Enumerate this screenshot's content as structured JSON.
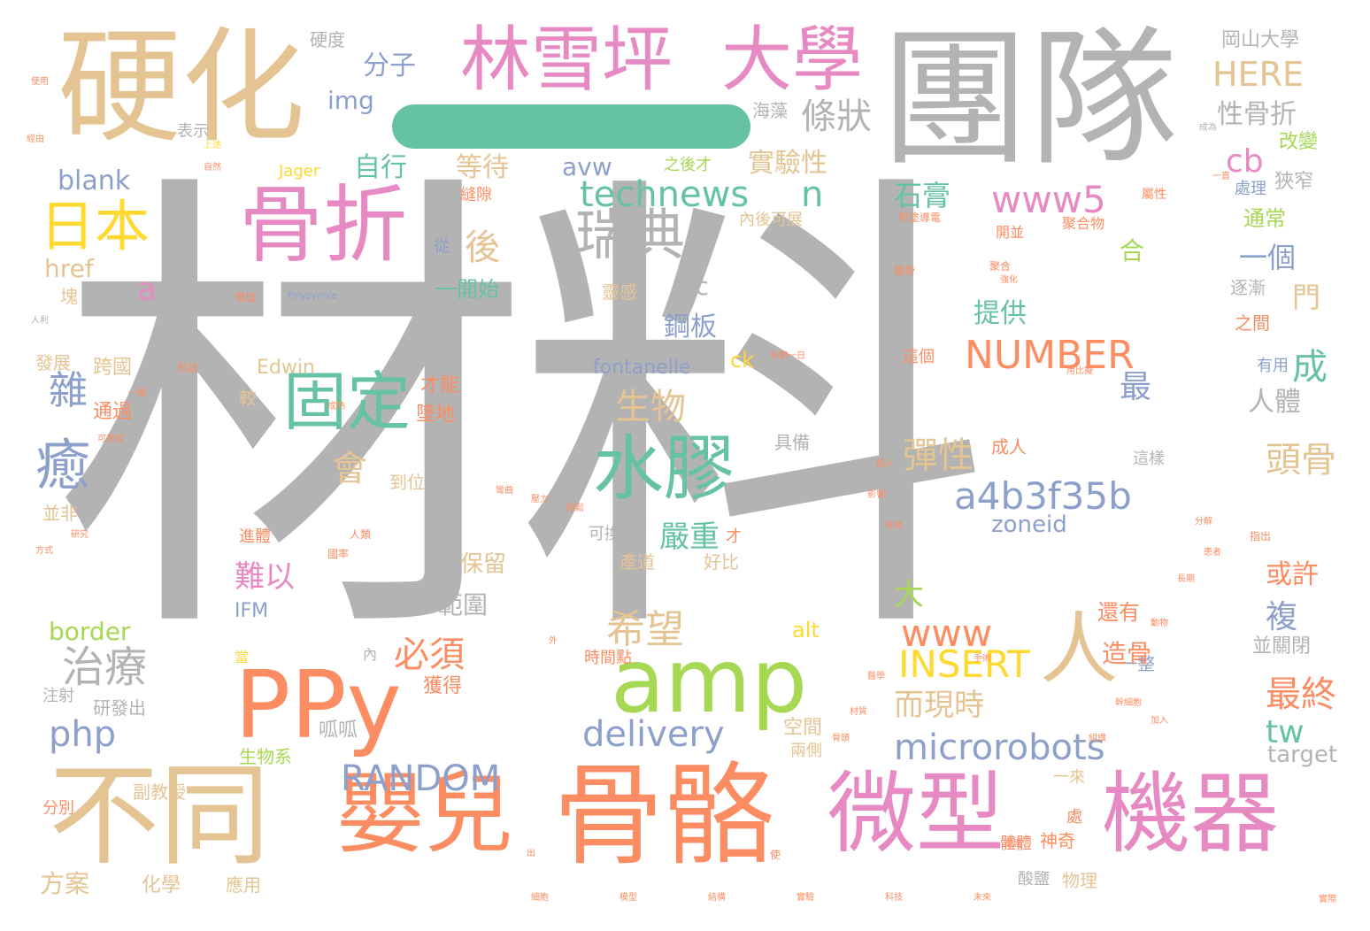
{
  "palette": {
    "gray": "#b3b3b3",
    "tan": "#e5c494",
    "pink": "#e78ac3",
    "orange": "#fc8d62",
    "green": "#66c2a5",
    "lime": "#a6d854",
    "blue": "#8da0cb",
    "yellow": "#ffd92f"
  },
  "words": [
    "材料",
    "團隊",
    "硬化",
    "骨折",
    "骨骼",
    "不同",
    "林雪坪",
    "大學",
    "嬰兒",
    "微型",
    "機器",
    "PPy",
    "amp",
    "水膠",
    "固定",
    "日本",
    "瑞典",
    "人",
    "癒",
    "治療",
    "分子",
    "條狀",
    "technews",
    "n",
    "a4b3f35b",
    "www5",
    "microrobots",
    "delivery",
    "RANDOM",
    "NUMBER",
    "INSERT",
    "www",
    "php",
    "後",
    "希望",
    "生物",
    "彈性",
    "必須",
    "嚴重",
    "會",
    "難以",
    "最終",
    "頭骨",
    "HERE",
    "img",
    "自行",
    "等待",
    "avw",
    "實驗性",
    "cb",
    "性骨折",
    "岡山大學",
    "硬度",
    "海藻",
    "改變",
    "blank",
    "石膏",
    "一個",
    "通常",
    "href",
    "a",
    "src",
    "一開始",
    "鋼板",
    "提供",
    "門",
    "成",
    "最",
    "雜",
    "人體",
    "ck",
    "fontanelle",
    "Edwin",
    "跨國",
    "較",
    "生物系",
    "呱呱",
    "研發出",
    "副教授",
    "方案",
    "化學",
    "應用",
    "分別",
    "注射",
    "tw",
    "target",
    "一整",
    "造骨",
    "border",
    "IFM",
    "alt",
    "大",
    "保留",
    "範圍",
    "zoneid",
    "或許",
    "複",
    "還有",
    "並關閉",
    "而現時",
    "時間點",
    "好比",
    "產道",
    "可換",
    "空間",
    "兩側",
    "獲得",
    "到位",
    "才能",
    "墜地",
    "具備",
    "成人",
    "這樣",
    "並非",
    "通過",
    "發展",
    "進體",
    "表示",
    "之後才",
    "縫隙",
    "從",
    "合",
    "靈感",
    "內後可展",
    "狹窄",
    "處理",
    "逐漸",
    "之間",
    "這個",
    "有用",
    "物理",
    "酸鹽",
    "神奇",
    "一來",
    "處",
    "體體",
    "Jager",
    "塊",
    "聚合物",
    "開並",
    "附塗導電",
    "屬性",
    "Polypyrrole",
    "當",
    "內",
    "才",
    "使用",
    "經由",
    "人利",
    "一種",
    "可發成",
    "上述",
    "自然",
    "成為",
    "增加",
    "形狀",
    "有朝一日",
    "用比擬",
    "臨骨",
    "聚合",
    "指出",
    "國率",
    "人類",
    "強化",
    "實際",
    "加入",
    "使",
    "出",
    "外",
    "導電",
    "一直",
    "方式",
    "研究",
    "成熟",
    "彎曲",
    "壓力",
    "輕鬆",
    "影響",
    "植入",
    "有效",
    "分解",
    "患者",
    "長期",
    "動物",
    "幹細胞",
    "組織",
    "手術",
    "醫學",
    "材質",
    "骨頭",
    "細胞",
    "模型",
    "結構",
    "實驗",
    "科技",
    "未來"
  ]
}
